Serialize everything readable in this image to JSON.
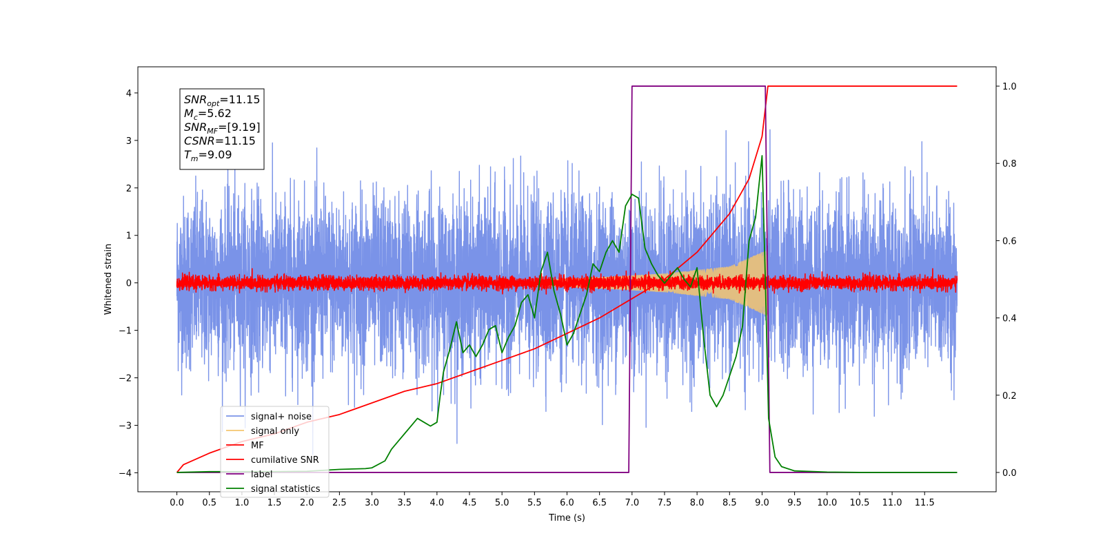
{
  "chart_data": {
    "type": "line",
    "xlabel": "Time (s)",
    "ylabel": "Whitened strain",
    "xlim": [
      -0.6,
      12.6
    ],
    "ylim": [
      -4.4,
      4.55
    ],
    "y2lim": [
      -0.05,
      1.05
    ],
    "x_ticks": [
      "0.0",
      "0.5",
      "1.0",
      "1.5",
      "2.0",
      "2.5",
      "3.0",
      "3.5",
      "4.0",
      "4.5",
      "5.0",
      "5.5",
      "6.0",
      "6.5",
      "7.0",
      "7.5",
      "8.0",
      "8.5",
      "9.0",
      "9.5",
      "10.0",
      "10.5",
      "11.0",
      "11.5"
    ],
    "y_ticks": [
      "4",
      "3",
      "2",
      "1",
      "0",
      "−1",
      "−2",
      "−3",
      "−4"
    ],
    "y2_ticks": [
      "1.0",
      "0.8",
      "0.6",
      "0.4",
      "0.2",
      "0.0"
    ],
    "legend_position": "lower-left",
    "info_box": [
      {
        "sym": "SNR",
        "sub": "opt",
        "val": "=11.15"
      },
      {
        "sym": "M",
        "sub": "c",
        "val": "=5.62"
      },
      {
        "sym": "SNR",
        "sub": "MF",
        "val": "=[9.19]"
      },
      {
        "sym": "CSNR",
        "sub": "",
        "val": "=11.15"
      },
      {
        "sym": "T",
        "sub": "m",
        "val": "=9.09"
      }
    ],
    "series": [
      {
        "name": "signal+ noise",
        "color": "#7a93e8",
        "axis": "left",
        "kind": "noise",
        "x_range": [
          0,
          12
        ],
        "amplitude_sigma": 0.9
      },
      {
        "name": "signal only",
        "color": "#f5c66e",
        "axis": "left",
        "kind": "chirp",
        "x_range": [
          5.5,
          9.09
        ],
        "envelope": [
          [
            5.5,
            0.05
          ],
          [
            6.5,
            0.12
          ],
          [
            7.5,
            0.2
          ],
          [
            8.5,
            0.35
          ],
          [
            9.0,
            0.65
          ],
          [
            9.09,
            0.7
          ]
        ]
      },
      {
        "name": "MF",
        "color": "#ff0000",
        "axis": "left",
        "kind": "noise",
        "x_range": [
          0,
          12
        ],
        "amplitude_sigma": 0.07
      },
      {
        "name": "cumilative SNR",
        "color": "#ff0000",
        "axis": "right",
        "x": [
          0.0,
          0.1,
          0.5,
          1.0,
          1.5,
          2.0,
          2.5,
          3.0,
          3.5,
          4.0,
          4.5,
          5.0,
          5.5,
          6.0,
          6.5,
          7.0,
          7.5,
          8.0,
          8.5,
          8.8,
          9.0,
          9.09,
          9.5,
          10.0,
          11.0,
          12.0
        ],
        "y": [
          0.0,
          0.02,
          0.05,
          0.08,
          0.1,
          0.13,
          0.15,
          0.18,
          0.21,
          0.23,
          0.26,
          0.29,
          0.32,
          0.36,
          0.4,
          0.45,
          0.5,
          0.57,
          0.67,
          0.76,
          0.87,
          1.0,
          1.0,
          1.0,
          1.0,
          1.0
        ]
      },
      {
        "name": "label",
        "color": "#800080",
        "axis": "right",
        "x": [
          0.0,
          6.95,
          7.0,
          9.05,
          9.12,
          12.0
        ],
        "y": [
          0.0,
          0.0,
          1.0,
          1.0,
          0.0,
          0.0
        ]
      },
      {
        "name": "signal statistics",
        "color": "#008000",
        "axis": "right",
        "x": [
          0.0,
          0.5,
          1.0,
          1.5,
          2.0,
          2.5,
          2.9,
          3.0,
          3.2,
          3.3,
          3.4,
          3.5,
          3.6,
          3.7,
          3.8,
          3.9,
          4.0,
          4.05,
          4.1,
          4.2,
          4.3,
          4.4,
          4.5,
          4.6,
          4.7,
          4.8,
          4.9,
          5.0,
          5.1,
          5.2,
          5.3,
          5.4,
          5.5,
          5.6,
          5.7,
          5.8,
          5.9,
          6.0,
          6.1,
          6.2,
          6.3,
          6.4,
          6.5,
          6.6,
          6.7,
          6.8,
          6.9,
          7.0,
          7.1,
          7.2,
          7.3,
          7.4,
          7.5,
          7.6,
          7.7,
          7.8,
          7.9,
          8.0,
          8.1,
          8.2,
          8.3,
          8.4,
          8.5,
          8.6,
          8.7,
          8.8,
          8.9,
          9.0,
          9.05,
          9.1,
          9.2,
          9.3,
          9.5,
          10.0,
          10.5,
          11.0,
          12.0
        ],
        "y": [
          0.0,
          0.002,
          0.002,
          0.002,
          0.003,
          0.008,
          0.01,
          0.012,
          0.03,
          0.06,
          0.08,
          0.1,
          0.12,
          0.14,
          0.13,
          0.12,
          0.13,
          0.2,
          0.26,
          0.32,
          0.39,
          0.31,
          0.33,
          0.3,
          0.33,
          0.37,
          0.38,
          0.31,
          0.35,
          0.38,
          0.44,
          0.46,
          0.4,
          0.52,
          0.57,
          0.47,
          0.41,
          0.33,
          0.36,
          0.41,
          0.46,
          0.54,
          0.52,
          0.57,
          0.6,
          0.57,
          0.69,
          0.72,
          0.71,
          0.58,
          0.54,
          0.51,
          0.49,
          0.51,
          0.53,
          0.5,
          0.48,
          0.53,
          0.35,
          0.2,
          0.17,
          0.2,
          0.25,
          0.3,
          0.38,
          0.6,
          0.66,
          0.82,
          0.5,
          0.14,
          0.04,
          0.015,
          0.004,
          0.001,
          0.0,
          0.0,
          0.0
        ]
      }
    ]
  }
}
